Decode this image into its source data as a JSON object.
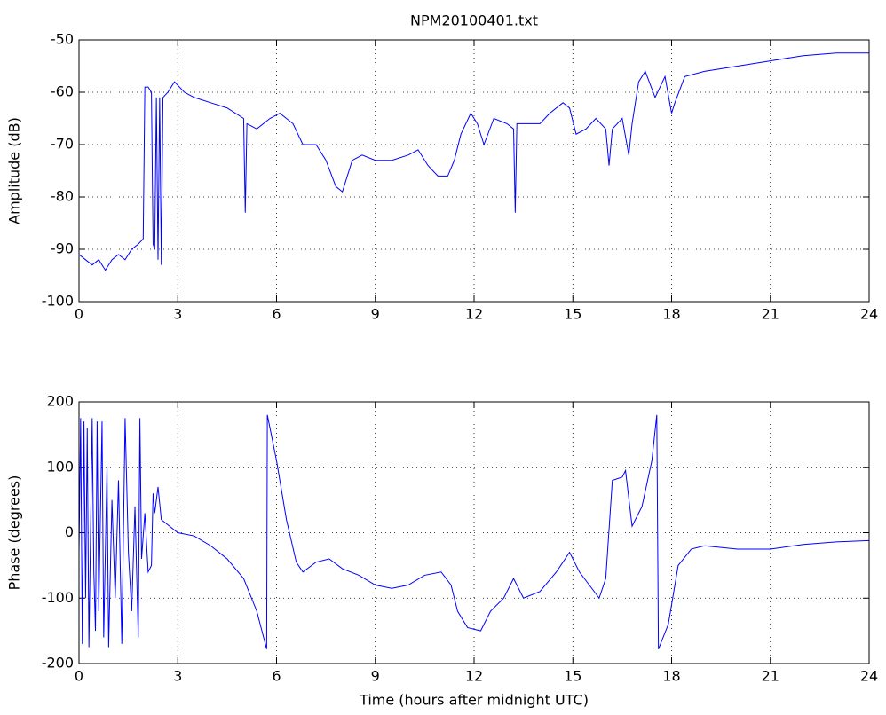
{
  "chart_data": [
    {
      "type": "line",
      "title": "NPM20100401.txt",
      "ylabel": "Amplitude (dB)",
      "color": "#0000ff",
      "grid": true,
      "xlim": [
        0,
        24
      ],
      "ylim": [
        -100,
        -50
      ],
      "xticks": [
        0,
        3,
        6,
        9,
        12,
        15,
        18,
        21,
        24
      ],
      "yticks": [
        -100,
        -90,
        -80,
        -70,
        -60,
        -50
      ],
      "x": [
        0,
        0.2,
        0.4,
        0.6,
        0.8,
        1.0,
        1.2,
        1.4,
        1.6,
        1.8,
        1.95,
        2.0,
        2.1,
        2.2,
        2.25,
        2.3,
        2.35,
        2.4,
        2.45,
        2.5,
        2.55,
        2.7,
        2.9,
        3.2,
        3.5,
        4.0,
        4.5,
        5.0,
        5.05,
        5.1,
        5.4,
        5.8,
        6.1,
        6.5,
        6.8,
        7.2,
        7.5,
        7.8,
        8.0,
        8.3,
        8.6,
        9,
        9.5,
        10,
        10.3,
        10.6,
        10.9,
        11.2,
        11.4,
        11.6,
        11.9,
        12.1,
        12.3,
        12.6,
        13,
        13.2,
        13.25,
        13.3,
        13.6,
        14,
        14.3,
        14.7,
        14.9,
        15.1,
        15.4,
        15.7,
        16,
        16.1,
        16.2,
        16.5,
        16.7,
        16.8,
        17.0,
        17.2,
        17.5,
        17.8,
        18.0,
        18.1,
        18.4,
        19,
        20,
        21,
        22,
        23,
        24
      ],
      "values": [
        -91,
        -92,
        -93,
        -92,
        -94,
        -92,
        -91,
        -92,
        -90,
        -89,
        -88,
        -59,
        -59,
        -60,
        -89,
        -90,
        -61,
        -92,
        -61,
        -93,
        -61,
        -60,
        -58,
        -60,
        -61,
        -62,
        -63,
        -65,
        -83,
        -66,
        -67,
        -65,
        -64,
        -66,
        -70,
        -70,
        -73,
        -78,
        -79,
        -73,
        -72,
        -73,
        -73,
        -72,
        -71,
        -74,
        -76,
        -76,
        -73,
        -68,
        -64,
        -66,
        -70,
        -65,
        -66,
        -67,
        -83,
        -66,
        -66,
        -66,
        -64,
        -62,
        -63,
        -68,
        -67,
        -65,
        -67,
        -74,
        -67,
        -65,
        -72,
        -66,
        -58,
        -56,
        -61,
        -57,
        -64,
        -62,
        -57,
        -56,
        -55,
        -54,
        -53,
        -52.5,
        -52.5
      ]
    },
    {
      "type": "line",
      "xlabel": "Time (hours after midnight UTC)",
      "ylabel": "Phase (degrees)",
      "color": "#0000ff",
      "grid": true,
      "xlim": [
        0,
        24
      ],
      "ylim": [
        -200,
        200
      ],
      "xticks": [
        0,
        3,
        6,
        9,
        12,
        15,
        18,
        21,
        24
      ],
      "yticks": [
        -200,
        -100,
        0,
        100,
        200
      ],
      "x": [
        0,
        0.05,
        0.1,
        0.15,
        0.2,
        0.25,
        0.3,
        0.4,
        0.45,
        0.5,
        0.55,
        0.6,
        0.7,
        0.75,
        0.85,
        0.9,
        1.0,
        1.1,
        1.2,
        1.3,
        1.4,
        1.5,
        1.6,
        1.7,
        1.8,
        1.85,
        1.9,
        2.0,
        2.1,
        2.2,
        2.25,
        2.3,
        2.4,
        2.5,
        3,
        3.5,
        4,
        4.5,
        5,
        5.4,
        5.7,
        5.72,
        6.0,
        6.3,
        6.6,
        6.8,
        7.2,
        7.6,
        8,
        8.5,
        9,
        9.5,
        10,
        10.5,
        11,
        11.3,
        11.5,
        11.8,
        12.2,
        12.5,
        12.9,
        13.2,
        13.5,
        14,
        14.5,
        14.9,
        15.2,
        15.5,
        15.8,
        16.0,
        16.2,
        16.5,
        16.6,
        16.8,
        17.1,
        17.4,
        17.55,
        17.6,
        17.9,
        18.2,
        18.6,
        19,
        20,
        21,
        22,
        23,
        24
      ],
      "values": [
        -30,
        175,
        -170,
        170,
        -100,
        160,
        -175,
        175,
        -60,
        -150,
        170,
        -120,
        170,
        -160,
        100,
        -175,
        50,
        -100,
        80,
        -170,
        175,
        -30,
        -120,
        40,
        -160,
        175,
        -40,
        30,
        -60,
        -50,
        60,
        30,
        70,
        20,
        0,
        -5,
        -20,
        -40,
        -70,
        -120,
        -178,
        180,
        110,
        20,
        -45,
        -60,
        -45,
        -40,
        -55,
        -65,
        -80,
        -85,
        -80,
        -65,
        -60,
        -80,
        -120,
        -145,
        -150,
        -120,
        -100,
        -70,
        -100,
        -90,
        -60,
        -30,
        -60,
        -80,
        -100,
        -70,
        80,
        85,
        95,
        10,
        40,
        110,
        180,
        -178,
        -140,
        -50,
        -25,
        -20,
        -25,
        -25,
        -18,
        -14,
        -12
      ]
    }
  ]
}
